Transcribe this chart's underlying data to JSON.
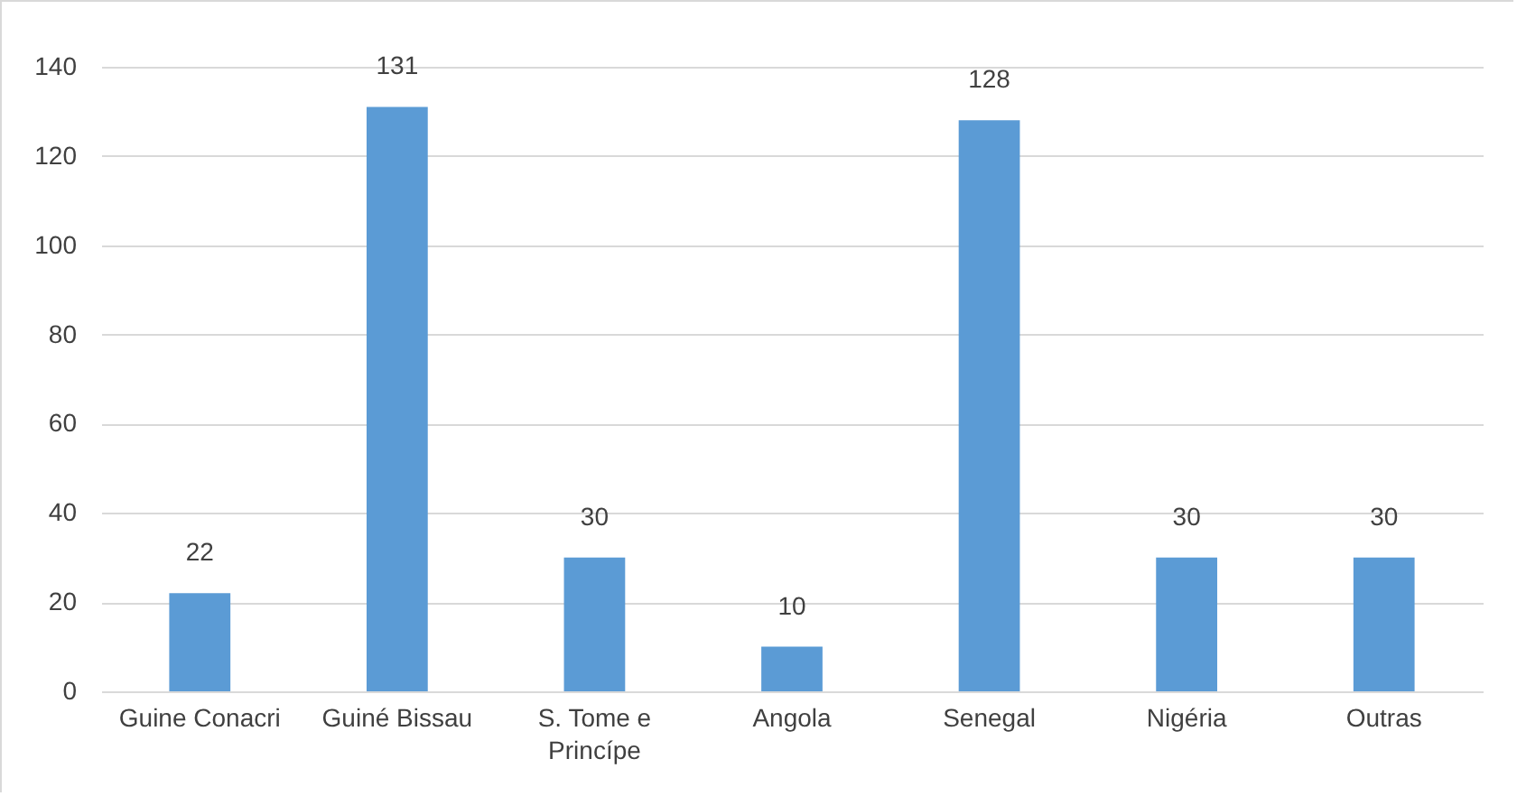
{
  "chart_data": {
    "type": "bar",
    "categories": [
      "Guine Conacri",
      "Guiné Bissau",
      "S. Tome e Princípe",
      "Angola",
      "Senegal",
      "Nigéria",
      "Outras"
    ],
    "values": [
      22,
      131,
      30,
      10,
      128,
      30,
      30
    ],
    "color": "#5b9bd5",
    "ylim": [
      0,
      140
    ],
    "yticks": [
      0,
      20,
      40,
      60,
      80,
      100,
      120,
      140
    ],
    "grid": "y",
    "data_labels": true
  }
}
